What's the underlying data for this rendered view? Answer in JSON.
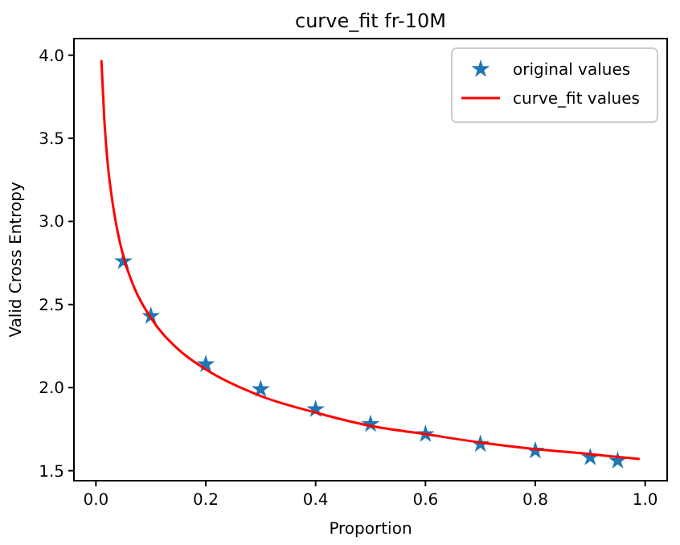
{
  "chart_data": {
    "type": "scatter",
    "title": "curve_fit fr-10M",
    "xlabel": "Proportion",
    "ylabel": "Valid Cross Entropy",
    "xlim": [
      -0.04,
      1.04
    ],
    "ylim": [
      1.44,
      4.1
    ],
    "xticks": [
      {
        "value": 0,
        "label": "0.0"
      },
      {
        "value": 0.2,
        "label": "0.2"
      },
      {
        "value": 0.4,
        "label": "0.4"
      },
      {
        "value": 0.6,
        "label": "0.6"
      },
      {
        "value": 0.8,
        "label": "0.8"
      },
      {
        "value": 1,
        "label": "1.0"
      }
    ],
    "yticks": [
      {
        "value": 1.5,
        "label": "1.5"
      },
      {
        "value": 2,
        "label": "2.0"
      },
      {
        "value": 2.5,
        "label": "2.5"
      },
      {
        "value": 3,
        "label": "3.0"
      },
      {
        "value": 3.5,
        "label": "3.5"
      },
      {
        "value": 4,
        "label": "4.0"
      }
    ],
    "grid": false,
    "legend": "top right",
    "series": [
      {
        "name": "original values",
        "marker": "star",
        "color": "#1f77b4",
        "x": [
          0.05,
          0.1,
          0.2,
          0.3,
          0.4,
          0.5,
          0.6,
          0.7,
          0.8,
          0.9,
          0.95
        ],
        "values": [
          2.76,
          2.43,
          2.14,
          1.99,
          1.87,
          1.78,
          1.72,
          1.66,
          1.62,
          1.58,
          1.56
        ]
      },
      {
        "name": "curve_fit values",
        "type": "line",
        "marker": "none",
        "line_style": "solid",
        "color": "#ff0000",
        "x": [
          0.01,
          0.015,
          0.02,
          0.03,
          0.04,
          0.05,
          0.07,
          0.1,
          0.15,
          0.2,
          0.3,
          0.4,
          0.5,
          0.6,
          0.7,
          0.8,
          0.9,
          0.99
        ],
        "values": [
          3.97,
          3.63,
          3.4,
          3.12,
          2.93,
          2.79,
          2.6,
          2.42,
          2.23,
          2.11,
          1.95,
          1.85,
          1.77,
          1.72,
          1.67,
          1.63,
          1.6,
          1.57
        ]
      }
    ]
  }
}
